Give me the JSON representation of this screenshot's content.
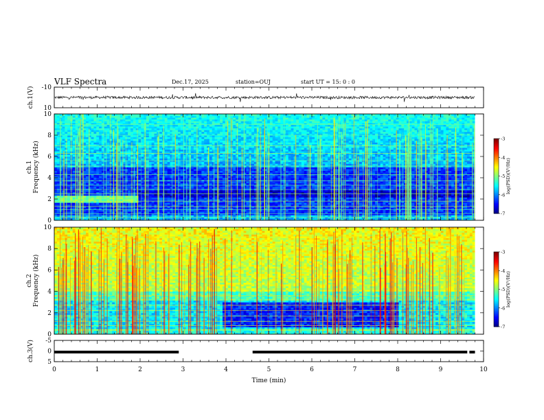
{
  "header": {
    "title": "VLF Spectra",
    "date": "Dec.17, 2025",
    "station": "station=OUJ",
    "start": "start  UT =   15: 0  : 0"
  },
  "chart_data": [
    {
      "type": "line",
      "name": "ch1-waveform",
      "ylabel": "ch.1(V)",
      "ylim": [
        -10,
        10
      ],
      "yticks": [
        "10",
        "-10"
      ],
      "xlim": [
        0,
        10
      ],
      "x": [
        0,
        1,
        2,
        3,
        4,
        5,
        6,
        7,
        8,
        9,
        9.8
      ],
      "y": [
        0,
        0,
        0,
        0,
        0,
        0,
        0,
        0,
        0,
        0,
        0
      ]
    },
    {
      "type": "heatmap",
      "name": "ch1-spectrogram",
      "ylabel_line1": "ch.1",
      "ylabel_line2": "Frequency  (kHz)",
      "ylim": [
        0,
        10
      ],
      "yticks": [
        "0",
        "2",
        "4",
        "6",
        "8",
        "10"
      ],
      "xlim": [
        0,
        9.8
      ],
      "colorbar": {
        "label": "log(PSD)(V²/Hz)",
        "range": [
          -7,
          -3
        ],
        "ticks": [
          "-3",
          "-4",
          "-5",
          "-6",
          "-7"
        ]
      }
    },
    {
      "type": "heatmap",
      "name": "ch2-spectrogram",
      "ylabel_line1": "ch.2",
      "ylabel_line2": "Frequency  (kHz)",
      "ylim": [
        0,
        10
      ],
      "yticks": [
        "0",
        "2",
        "4",
        "6",
        "8",
        "10"
      ],
      "xlim": [
        0,
        9.8
      ],
      "colorbar": {
        "label": "log(PSD)(V²/Hz)",
        "range": [
          -7,
          -3
        ],
        "ticks": [
          "-3",
          "-4",
          "-5",
          "-6",
          "-7"
        ]
      }
    },
    {
      "type": "line",
      "name": "ch3-signal",
      "ylabel": "ch.3(V)",
      "ylim": [
        -5,
        5
      ],
      "yticks": [
        "5",
        "0",
        "-5"
      ],
      "xlim": [
        0,
        10
      ],
      "segments": [
        {
          "x": [
            0,
            2.9
          ],
          "y": -0.5
        },
        {
          "x": [
            4.62,
            9.62
          ],
          "y": -0.5
        },
        {
          "x": [
            9.67,
            9.8
          ],
          "y": -0.5
        }
      ]
    }
  ],
  "xaxis": {
    "label": "Time  (min)",
    "range": [
      0,
      10
    ],
    "ticks": [
      "0",
      "1",
      "2",
      "3",
      "4",
      "5",
      "6",
      "7",
      "8",
      "9",
      "10"
    ]
  }
}
